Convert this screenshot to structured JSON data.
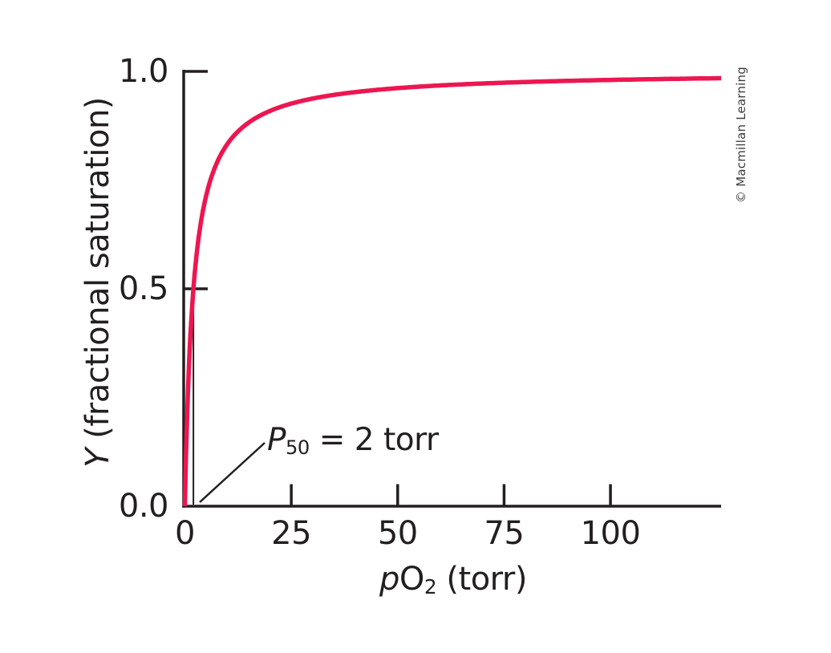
{
  "figure": {
    "copyright": "© Macmillan Learning",
    "colors": {
      "curve": "#ed1650",
      "axis": "#231f20",
      "copyright_text": "#3d3d3d"
    }
  },
  "chart_data": {
    "type": "line",
    "title": "",
    "xlabel": "pO2 (torr)",
    "ylabel": "Y (fractional saturation)",
    "xlim": [
      0,
      126
    ],
    "ylim": [
      0,
      1.0
    ],
    "grid": false,
    "legend": false,
    "x_tick_labels": [
      "0",
      "25",
      "50",
      "75",
      "100"
    ],
    "x_tick_values": [
      0,
      25,
      50,
      75,
      100
    ],
    "y_tick_labels": [
      "0.0",
      "0.5",
      "1.0"
    ],
    "y_tick_values": [
      0,
      0.5,
      1.0
    ],
    "series": [
      {
        "name": "oxygen-binding-curve",
        "color": "#ed1650",
        "model": "hyperbolic: Y = pO2 / (P50 + pO2)",
        "P50_torr": 2,
        "x": [
          0,
          1,
          2,
          5,
          10,
          20,
          40,
          60,
          80,
          100,
          126
        ],
        "y": [
          0,
          0.33,
          0.5,
          0.71,
          0.83,
          0.91,
          0.95,
          0.97,
          0.98,
          0.98,
          0.98
        ]
      }
    ],
    "annotation": {
      "text": "P50 = 2 torr",
      "target": {
        "x_torr": 2,
        "y": 0.5
      },
      "parts": {
        "italic": "P",
        "sub": "50",
        "rest": " = 2 torr"
      }
    },
    "axis_label_parts": {
      "x": {
        "italic": "p",
        "main": "O",
        "sub": "2",
        "rest": " (torr)"
      },
      "y": {
        "italic": "Y",
        "rest": " (fractional saturation)"
      }
    }
  }
}
